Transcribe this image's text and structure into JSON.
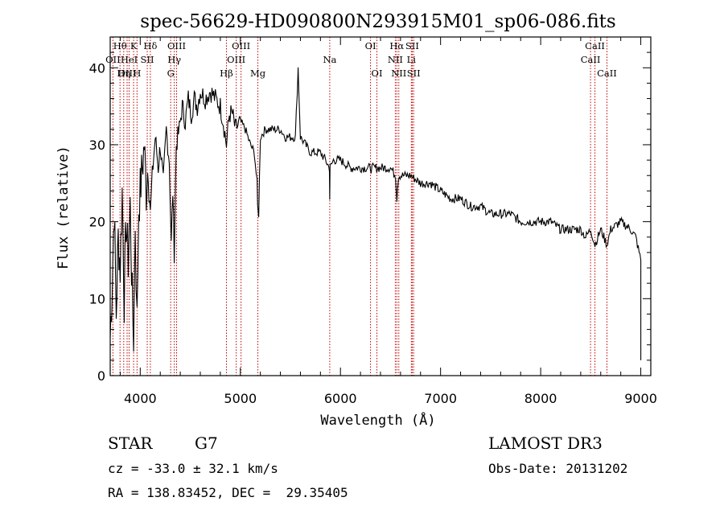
{
  "chart_data": {
    "type": "line",
    "title": "spec-56629-HD090800N293915M01_sp06-086.fits",
    "xlabel": "Wavelength (Å)",
    "ylabel": "Flux (relative)",
    "xlim": [
      3700,
      9100
    ],
    "ylim": [
      0,
      44
    ],
    "xticks": [
      4000,
      5000,
      6000,
      7000,
      8000,
      9000
    ],
    "yticks": [
      0,
      10,
      20,
      30,
      40
    ],
    "grid": false,
    "series": [
      {
        "name": "flux",
        "x": [
          3700,
          3720,
          3740,
          3760,
          3780,
          3800,
          3820,
          3840,
          3860,
          3880,
          3900,
          3920,
          3934,
          3950,
          3968,
          3985,
          4000,
          4020,
          4040,
          4060,
          4080,
          4101,
          4120,
          4150,
          4180,
          4200,
          4230,
          4260,
          4290,
          4310,
          4325,
          4340,
          4360,
          4390,
          4420,
          4450,
          4480,
          4510,
          4540,
          4570,
          4600,
          4650,
          4700,
          4750,
          4800,
          4830,
          4861,
          4890,
          4920,
          4950,
          5000,
          5050,
          5100,
          5140,
          5167,
          5172,
          5183,
          5200,
          5250,
          5300,
          5350,
          5400,
          5450,
          5500,
          5550,
          5577,
          5600,
          5650,
          5700,
          5750,
          5800,
          5850,
          5890,
          5893,
          5896,
          5930,
          6000,
          6100,
          6200,
          6300,
          6400,
          6500,
          6550,
          6563,
          6580,
          6620,
          6700,
          6800,
          6900,
          7000,
          7100,
          7200,
          7300,
          7400,
          7500,
          7600,
          7700,
          7800,
          7900,
          8000,
          8100,
          8200,
          8300,
          8400,
          8450,
          8500,
          8542,
          8600,
          8662,
          8700,
          8800,
          8900,
          8950,
          9000
        ],
        "y": [
          5,
          12,
          22,
          8,
          18,
          14,
          24,
          10,
          20,
          15,
          22,
          10,
          5,
          20,
          7,
          22,
          24,
          27,
          30,
          24,
          28,
          21,
          26,
          31,
          27,
          30,
          25,
          32,
          28,
          17,
          24,
          16,
          30,
          32,
          35,
          33,
          36,
          34,
          36,
          35,
          37,
          36,
          37,
          36,
          35,
          33,
          30,
          34,
          34,
          32,
          33,
          32,
          30,
          29,
          25,
          22,
          21,
          31,
          32,
          32,
          32,
          32,
          31,
          31,
          31,
          40,
          31,
          30,
          29,
          29,
          29,
          28,
          27,
          23,
          27,
          28,
          28,
          27,
          27,
          27,
          27,
          27,
          26,
          23,
          26,
          26,
          26,
          25,
          25,
          24,
          23,
          23,
          22,
          22,
          21,
          21,
          21,
          20,
          20,
          20,
          20,
          19,
          19,
          19,
          18,
          19,
          17,
          19,
          17,
          19,
          20,
          19,
          18,
          15
        ]
      }
    ],
    "line_annotations": [
      {
        "label": "Hθ",
        "x": 3798,
        "row": 1
      },
      {
        "label": "K",
        "x": 3934,
        "row": 1
      },
      {
        "label": "Hδ",
        "x": 4101,
        "row": 1
      },
      {
        "label": "OII",
        "x": 3727,
        "row": 2
      },
      {
        "label": "HeI",
        "x": 3889,
        "row": 2
      },
      {
        "label": "SII",
        "x": 4070,
        "row": 2
      },
      {
        "label": "OIII",
        "x": 3869,
        "row": 3
      },
      {
        "label": "Hη",
        "x": 3835,
        "row": 3
      },
      {
        "label": "H",
        "x": 3968,
        "row": 3
      },
      {
        "label": "OIII",
        "x": 4363,
        "row": 1
      },
      {
        "label": "Hγ",
        "x": 4340,
        "row": 2
      },
      {
        "label": "G",
        "x": 4304,
        "row": 3
      },
      {
        "label": "Hβ",
        "x": 4861,
        "row": 3
      },
      {
        "label": "OIII",
        "x": 5007,
        "row": 1
      },
      {
        "label": "OIII",
        "x": 4959,
        "row": 2
      },
      {
        "label": "Mg",
        "x": 5175,
        "row": 3
      },
      {
        "label": "Na",
        "x": 5893,
        "row": 2
      },
      {
        "label": "OI",
        "x": 6300,
        "row": 1
      },
      {
        "label": "OI",
        "x": 6364,
        "row": 3
      },
      {
        "label": "Hα",
        "x": 6563,
        "row": 1
      },
      {
        "label": "SII",
        "x": 6717,
        "row": 1
      },
      {
        "label": "NII",
        "x": 6548,
        "row": 2
      },
      {
        "label": "Li",
        "x": 6708,
        "row": 2
      },
      {
        "label": "NII",
        "x": 6583,
        "row": 3
      },
      {
        "label": "SII",
        "x": 6731,
        "row": 3
      },
      {
        "label": "CaII",
        "x": 8542,
        "row": 1
      },
      {
        "label": "CaII",
        "x": 8498,
        "row": 2
      },
      {
        "label": "CaII",
        "x": 8662,
        "row": 3
      }
    ]
  },
  "info": {
    "object_type": "STAR",
    "spectral_class": "G7",
    "survey": "LAMOST DR3",
    "cz": "cz = -33.0 ± 32.1 km/s",
    "obs_date": "Obs-Date: 20131202",
    "coords": "RA = 138.83452, DEC =  29.35405"
  }
}
